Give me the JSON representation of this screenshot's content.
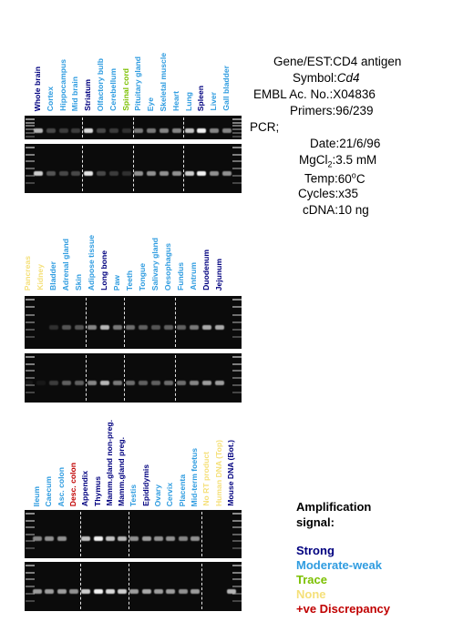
{
  "colors": {
    "strong": "#00007f",
    "moderate": "#2f9ce0",
    "trace": "#7cc000",
    "none": "#f5e07a",
    "discrepancy": "#c00000"
  },
  "panels": [
    {
      "lanes": [
        {
          "label": "Whole brain",
          "level": "strong",
          "b1": 0.7,
          "b2": 0.8
        },
        {
          "label": "Cortex",
          "level": "moderate",
          "b1": 0.25,
          "b2": 0.3
        },
        {
          "label": "Hippocampus",
          "level": "moderate",
          "b1": 0.2,
          "b2": 0.25
        },
        {
          "label": "Mid brain",
          "level": "moderate",
          "b1": 0.2,
          "b2": 0.25
        },
        {
          "label": "Striatum",
          "level": "strong",
          "b1": 0.85,
          "b2": 0.9
        },
        {
          "label": "Olfactory bulb",
          "level": "moderate",
          "b1": 0.25,
          "b2": 0.25
        },
        {
          "label": "Cerebellum",
          "level": "moderate",
          "b1": 0.2,
          "b2": 0.2
        },
        {
          "label": "Spinal cord",
          "level": "trace",
          "b1": 0.15,
          "b2": 0.15
        },
        {
          "label": "Pituitary gland",
          "level": "moderate",
          "b1": 0.45,
          "b2": 0.55
        },
        {
          "label": "Eye",
          "level": "moderate",
          "b1": 0.45,
          "b2": 0.55
        },
        {
          "label": "Skeletal muscle",
          "level": "moderate",
          "b1": 0.5,
          "b2": 0.55
        },
        {
          "label": "Heart",
          "level": "moderate",
          "b1": 0.5,
          "b2": 0.55
        },
        {
          "label": "Lung",
          "level": "moderate",
          "b1": 0.75,
          "b2": 0.8
        },
        {
          "label": "Spleen",
          "level": "strong",
          "b1": 0.95,
          "b2": 0.95
        },
        {
          "label": "Liver",
          "level": "moderate",
          "b1": 0.5,
          "b2": 0.55
        },
        {
          "label": "Gall bladder",
          "level": "moderate",
          "b1": 0.5,
          "b2": 0.55
        }
      ]
    },
    {
      "lanes": [
        {
          "label": "Pancreas",
          "level": "none",
          "b1": 0.0,
          "b2": 0.05
        },
        {
          "label": "Kidney",
          "level": "none",
          "b1": 0.0,
          "b2": 0.05
        },
        {
          "label": "Bladder",
          "level": "moderate",
          "b1": 0.15,
          "b2": 0.2
        },
        {
          "label": "Adrenal gland",
          "level": "moderate",
          "b1": 0.3,
          "b2": 0.35
        },
        {
          "label": "Skin",
          "level": "moderate",
          "b1": 0.3,
          "b2": 0.35
        },
        {
          "label": "Adipose tissue",
          "level": "moderate",
          "b1": 0.5,
          "b2": 0.5
        },
        {
          "label": "Long bone",
          "level": "strong",
          "b1": 0.7,
          "b2": 0.7
        },
        {
          "label": "Paw",
          "level": "moderate",
          "b1": 0.45,
          "b2": 0.45
        },
        {
          "label": "Teeth",
          "level": "moderate",
          "b1": 0.4,
          "b2": 0.4
        },
        {
          "label": "Tongue",
          "level": "moderate",
          "b1": 0.35,
          "b2": 0.35
        },
        {
          "label": "Salivary gland",
          "level": "moderate",
          "b1": 0.3,
          "b2": 0.35
        },
        {
          "label": "Oesophagus",
          "level": "moderate",
          "b1": 0.35,
          "b2": 0.4
        },
        {
          "label": "Fundus",
          "level": "moderate",
          "b1": 0.35,
          "b2": 0.4
        },
        {
          "label": "Antrum",
          "level": "moderate",
          "b1": 0.45,
          "b2": 0.5
        },
        {
          "label": "Duodenum",
          "level": "strong",
          "b1": 0.65,
          "b2": 0.6
        },
        {
          "label": "Jejunum",
          "level": "strong",
          "b1": 0.65,
          "b2": 0.6
        }
      ]
    },
    {
      "lanes": [
        {
          "label": "Ileum",
          "level": "moderate",
          "b1": 0.5,
          "b2": 0.6
        },
        {
          "label": "Caecum",
          "level": "moderate",
          "b1": 0.55,
          "b2": 0.6
        },
        {
          "label": "Asc. colon",
          "level": "moderate",
          "b1": 0.55,
          "b2": 0.6
        },
        {
          "label": "Desc. colon",
          "level": "discrepancy",
          "b1": 0.0,
          "b2": 0.55
        },
        {
          "label": "Appendix",
          "level": "strong",
          "b1": 0.75,
          "b2": 0.8
        },
        {
          "label": "Thymus",
          "level": "strong",
          "b1": 0.95,
          "b2": 0.95
        },
        {
          "label": "Mamm.gland non-preg.",
          "level": "strong",
          "b1": 0.75,
          "b2": 0.85
        },
        {
          "label": "Mamm.gland preg.",
          "level": "strong",
          "b1": 0.7,
          "b2": 0.8
        },
        {
          "label": "Testis",
          "level": "moderate",
          "b1": 0.55,
          "b2": 0.6
        },
        {
          "label": "Epididymis",
          "level": "strong",
          "b1": 0.6,
          "b2": 0.65
        },
        {
          "label": "Ovary",
          "level": "moderate",
          "b1": 0.55,
          "b2": 0.6
        },
        {
          "label": "Cervix",
          "level": "moderate",
          "b1": 0.55,
          "b2": 0.6
        },
        {
          "label": "Placenta",
          "level": "moderate",
          "b1": 0.5,
          "b2": 0.55
        },
        {
          "label": "Mid-term foetus",
          "level": "moderate",
          "b1": 0.55,
          "b2": 0.6
        },
        {
          "label": "No RT product",
          "level": "none",
          "b1": 0.0,
          "b2": 0.0
        },
        {
          "label": "Human DNA (Top)",
          "level": "none",
          "b1": 0.0,
          "b2": 0.0
        },
        {
          "label": "Mouse DNA (Bot.)",
          "level": "strong",
          "b1": 0.0,
          "b2": 0.7
        }
      ]
    }
  ],
  "info": {
    "gene_key": "Gene/EST:",
    "gene_val": "CD4 antigen",
    "symbol_key": "Symbol:",
    "symbol_val": "Cd4",
    "embl_key": "EMBL Ac. No.:",
    "embl_val": "X04836",
    "primers_key": "Primers:",
    "primers_val": "96/239",
    "pcr_key": "PCR;",
    "date_key": "Date:",
    "date_val": "21/6/96",
    "mgcl_key_a": "MgCl",
    "mgcl_key_sub": "2",
    "mgcl_key_b": ":",
    "mgcl_val": "3.5 mM",
    "temp_key": "Temp:",
    "temp_val_a": "60",
    "temp_val_sup": "o",
    "temp_val_b": "C",
    "cycles_key": "Cycles:",
    "cycles_val": "x35",
    "cdna_key": "cDNA:",
    "cdna_val": "10 ng"
  },
  "legend": {
    "title_line1": "Amplification",
    "title_line2": "signal:",
    "strong": "Strong",
    "moderate": "Moderate-weak",
    "trace": "Trace",
    "none": "None",
    "discrepancy": "+ve Discrepancy"
  }
}
